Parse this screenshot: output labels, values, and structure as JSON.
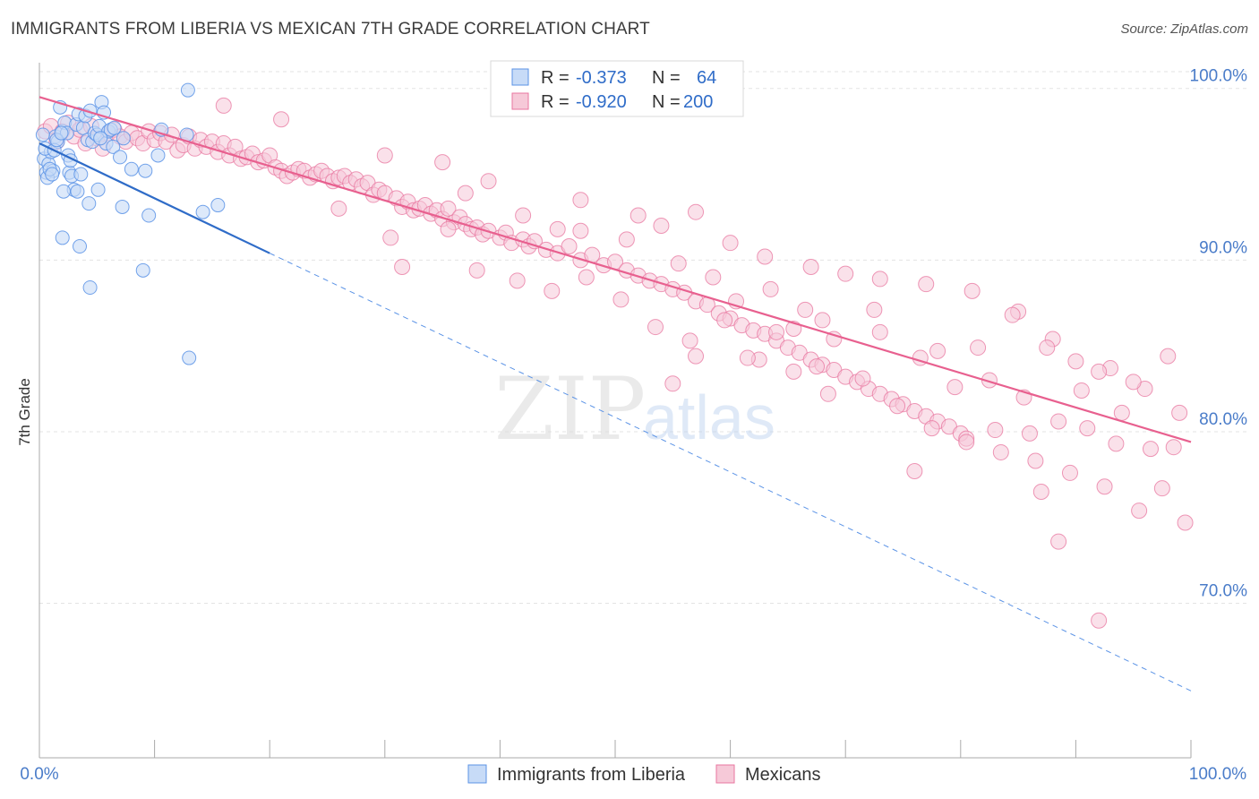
{
  "header": {
    "title": "IMMIGRANTS FROM LIBERIA VS MEXICAN 7TH GRADE CORRELATION CHART",
    "source": "Source: ZipAtlas.com"
  },
  "watermark": {
    "zip": "ZIP",
    "atlas": "atlas"
  },
  "legend_top": {
    "r_label": "R =",
    "n_label": "N =",
    "rows": [
      {
        "r": "-0.373",
        "n": "64"
      },
      {
        "r": "-0.920",
        "n": "200"
      }
    ]
  },
  "legend_bottom": {
    "items": [
      "Immigrants from Liberia",
      "Mexicans"
    ]
  },
  "chart_data": {
    "type": "scatter",
    "xlabel": "",
    "ylabel": "7th Grade",
    "x_tick_labels": [
      "0.0%",
      "100.0%"
    ],
    "y_tick_labels": [
      "100.0%",
      "90.0%",
      "80.0%",
      "70.0%"
    ],
    "xlim": [
      0,
      100
    ],
    "ylim": [
      61,
      101.5
    ],
    "grid": true,
    "colors": {
      "liberia": "#5b93e6",
      "liberia_fill": "#c7dbf7",
      "liberia_line": "#2f6cc8",
      "mexicans": "#e8769f",
      "mexicans_fill": "#f6c9d8",
      "mexicans_line": "#e8608f",
      "tick_text": "#4a7cc9"
    },
    "series": [
      {
        "name": "Immigrants from Liberia",
        "r": -0.373,
        "n": 64,
        "trend": {
          "x": [
            0,
            20
          ],
          "y": [
            96.8,
            90.4
          ]
        },
        "trend_dashed": {
          "x": [
            20,
            100
          ],
          "y": [
            90.4,
            64.9
          ]
        },
        "points": [
          [
            0.4,
            95.9
          ],
          [
            0.6,
            95.1
          ],
          [
            0.8,
            95.6
          ],
          [
            1.0,
            96.3
          ],
          [
            1.2,
            95.2
          ],
          [
            1.4,
            97.2
          ],
          [
            1.6,
            96.9
          ],
          [
            1.8,
            98.9
          ],
          [
            2.0,
            97.5
          ],
          [
            2.2,
            98.0
          ],
          [
            2.4,
            97.4
          ],
          [
            2.5,
            96.1
          ],
          [
            2.6,
            95.1
          ],
          [
            2.7,
            95.8
          ],
          [
            2.8,
            94.9
          ],
          [
            3.0,
            94.1
          ],
          [
            3.2,
            97.9
          ],
          [
            3.4,
            98.5
          ],
          [
            3.6,
            95.0
          ],
          [
            3.8,
            97.7
          ],
          [
            4.0,
            98.4
          ],
          [
            4.2,
            97.0
          ],
          [
            4.4,
            98.7
          ],
          [
            4.6,
            96.9
          ],
          [
            4.8,
            97.4
          ],
          [
            5.0,
            97.3
          ],
          [
            5.2,
            97.8
          ],
          [
            5.4,
            99.2
          ],
          [
            5.6,
            98.6
          ],
          [
            5.8,
            96.8
          ],
          [
            6.0,
            97.5
          ],
          [
            6.2,
            97.6
          ],
          [
            6.4,
            96.6
          ],
          [
            0.3,
            97.3
          ],
          [
            0.5,
            96.5
          ],
          [
            0.7,
            94.8
          ],
          [
            0.9,
            95.3
          ],
          [
            1.1,
            95.0
          ],
          [
            1.3,
            96.4
          ],
          [
            1.5,
            97.0
          ],
          [
            1.9,
            97.4
          ],
          [
            2.1,
            94.0
          ],
          [
            3.3,
            94.0
          ],
          [
            3.5,
            90.8
          ],
          [
            4.3,
            93.3
          ],
          [
            5.1,
            94.1
          ],
          [
            5.3,
            97.1
          ],
          [
            6.5,
            97.7
          ],
          [
            7.0,
            96.0
          ],
          [
            7.2,
            93.1
          ],
          [
            8.0,
            95.3
          ],
          [
            9.2,
            95.2
          ],
          [
            9.5,
            92.6
          ],
          [
            10.3,
            96.1
          ],
          [
            10.6,
            97.6
          ],
          [
            12.8,
            97.3
          ],
          [
            14.2,
            92.8
          ],
          [
            15.5,
            93.2
          ],
          [
            2.0,
            91.3
          ],
          [
            4.4,
            88.4
          ],
          [
            7.3,
            97.1
          ],
          [
            9.0,
            89.4
          ],
          [
            12.9,
            99.9
          ],
          [
            13.0,
            84.3
          ]
        ]
      },
      {
        "name": "Mexicans",
        "r": -0.92,
        "n": 200,
        "trend": {
          "x": [
            0,
            100
          ],
          "y": [
            99.5,
            79.4
          ]
        },
        "points": [
          [
            0.5,
            97.5
          ],
          [
            1.0,
            97.8
          ],
          [
            1.5,
            96.9
          ],
          [
            2.0,
            97.5
          ],
          [
            2.5,
            98.0
          ],
          [
            3.0,
            97.2
          ],
          [
            3.5,
            97.6
          ],
          [
            4.0,
            96.8
          ],
          [
            4.5,
            97.8
          ],
          [
            5.0,
            97.1
          ],
          [
            5.5,
            96.5
          ],
          [
            6.0,
            97.4
          ],
          [
            6.5,
            97.6
          ],
          [
            7.0,
            97.2
          ],
          [
            7.5,
            96.9
          ],
          [
            8.0,
            97.4
          ],
          [
            8.5,
            97.1
          ],
          [
            9.0,
            96.8
          ],
          [
            9.5,
            97.5
          ],
          [
            10.0,
            97.0
          ],
          [
            10.5,
            97.4
          ],
          [
            11.0,
            96.9
          ],
          [
            11.5,
            97.3
          ],
          [
            12.0,
            96.4
          ],
          [
            12.5,
            96.7
          ],
          [
            13.0,
            97.2
          ],
          [
            13.5,
            96.5
          ],
          [
            14.0,
            97.0
          ],
          [
            14.5,
            96.6
          ],
          [
            15.0,
            96.9
          ],
          [
            15.5,
            96.3
          ],
          [
            16.0,
            96.8
          ],
          [
            16.5,
            96.1
          ],
          [
            17.0,
            96.6
          ],
          [
            17.5,
            95.9
          ],
          [
            18.0,
            96.0
          ],
          [
            18.5,
            96.2
          ],
          [
            19.0,
            95.7
          ],
          [
            19.5,
            95.8
          ],
          [
            20.0,
            96.1
          ],
          [
            20.5,
            95.4
          ],
          [
            21.0,
            95.2
          ],
          [
            21.5,
            94.9
          ],
          [
            22.0,
            95.1
          ],
          [
            22.5,
            95.3
          ],
          [
            23.0,
            95.2
          ],
          [
            23.5,
            94.8
          ],
          [
            24.0,
            95.0
          ],
          [
            24.5,
            95.2
          ],
          [
            25.0,
            94.9
          ],
          [
            25.5,
            94.6
          ],
          [
            26.0,
            94.8
          ],
          [
            26.5,
            94.9
          ],
          [
            27.0,
            94.5
          ],
          [
            27.5,
            94.7
          ],
          [
            28.0,
            94.3
          ],
          [
            28.5,
            94.5
          ],
          [
            29.0,
            93.8
          ],
          [
            29.5,
            94.1
          ],
          [
            30.0,
            93.9
          ],
          [
            31.0,
            93.6
          ],
          [
            31.5,
            93.1
          ],
          [
            32.0,
            93.4
          ],
          [
            32.5,
            92.9
          ],
          [
            33.0,
            93.0
          ],
          [
            33.5,
            93.2
          ],
          [
            34.0,
            92.7
          ],
          [
            34.5,
            92.9
          ],
          [
            35.0,
            92.4
          ],
          [
            35.5,
            93.0
          ],
          [
            36.0,
            92.2
          ],
          [
            36.5,
            92.5
          ],
          [
            37.0,
            92.1
          ],
          [
            37.5,
            91.8
          ],
          [
            38.0,
            91.9
          ],
          [
            38.5,
            91.5
          ],
          [
            39.0,
            91.7
          ],
          [
            40.0,
            91.3
          ],
          [
            40.5,
            91.6
          ],
          [
            41.0,
            91.0
          ],
          [
            42.0,
            91.2
          ],
          [
            42.5,
            90.8
          ],
          [
            43.0,
            91.1
          ],
          [
            44.0,
            90.6
          ],
          [
            45.0,
            90.4
          ],
          [
            46.0,
            90.8
          ],
          [
            47.0,
            90.0
          ],
          [
            48.0,
            90.3
          ],
          [
            49.0,
            89.7
          ],
          [
            50.0,
            89.9
          ],
          [
            51.0,
            89.4
          ],
          [
            52.0,
            89.1
          ],
          [
            53.0,
            88.8
          ],
          [
            54.0,
            88.6
          ],
          [
            55.0,
            88.3
          ],
          [
            56.0,
            88.1
          ],
          [
            57.0,
            87.6
          ],
          [
            58.0,
            87.4
          ],
          [
            59.0,
            86.9
          ],
          [
            60.0,
            86.6
          ],
          [
            61.0,
            86.2
          ],
          [
            62.0,
            85.9
          ],
          [
            63.0,
            85.7
          ],
          [
            64.0,
            85.3
          ],
          [
            65.0,
            84.9
          ],
          [
            66.0,
            84.6
          ],
          [
            67.0,
            84.2
          ],
          [
            68.0,
            83.9
          ],
          [
            69.0,
            83.6
          ],
          [
            70.0,
            83.2
          ],
          [
            71.0,
            82.9
          ],
          [
            72.0,
            82.5
          ],
          [
            73.0,
            82.2
          ],
          [
            74.0,
            81.9
          ],
          [
            75.0,
            81.6
          ],
          [
            76.0,
            81.2
          ],
          [
            77.0,
            80.9
          ],
          [
            78.0,
            80.6
          ],
          [
            79.0,
            80.3
          ],
          [
            80.0,
            79.9
          ],
          [
            16.0,
            99.0
          ],
          [
            21.0,
            98.2
          ],
          [
            30.0,
            96.1
          ],
          [
            35.0,
            95.7
          ],
          [
            39.0,
            94.6
          ],
          [
            47.0,
            93.5
          ],
          [
            52.0,
            92.6
          ],
          [
            57.0,
            92.8
          ],
          [
            60.0,
            91.0
          ],
          [
            63.0,
            90.2
          ],
          [
            67.0,
            89.6
          ],
          [
            70.0,
            89.2
          ],
          [
            73.0,
            88.9
          ],
          [
            77.0,
            88.6
          ],
          [
            81.0,
            88.2
          ],
          [
            85.0,
            87.0
          ],
          [
            88.0,
            85.4
          ],
          [
            90.0,
            84.1
          ],
          [
            93.0,
            83.7
          ],
          [
            96.0,
            82.5
          ],
          [
            99.0,
            81.1
          ],
          [
            98.0,
            84.4
          ],
          [
            26.0,
            93.0
          ],
          [
            30.5,
            91.3
          ],
          [
            31.5,
            89.6
          ],
          [
            35.5,
            91.8
          ],
          [
            38.0,
            89.4
          ],
          [
            41.5,
            88.8
          ],
          [
            44.5,
            88.2
          ],
          [
            47.5,
            89.0
          ],
          [
            50.5,
            87.7
          ],
          [
            53.5,
            86.1
          ],
          [
            56.5,
            85.3
          ],
          [
            59.5,
            86.5
          ],
          [
            62.5,
            84.2
          ],
          [
            65.5,
            83.5
          ],
          [
            68.5,
            82.2
          ],
          [
            71.5,
            83.1
          ],
          [
            74.5,
            81.5
          ],
          [
            77.5,
            80.2
          ],
          [
            80.5,
            79.6
          ],
          [
            83.5,
            78.8
          ],
          [
            86.5,
            78.3
          ],
          [
            89.5,
            77.6
          ],
          [
            92.5,
            76.8
          ],
          [
            95.5,
            75.4
          ],
          [
            97.5,
            76.7
          ],
          [
            99.5,
            74.7
          ],
          [
            45.0,
            91.8
          ],
          [
            51.0,
            91.2
          ],
          [
            54.0,
            92.0
          ],
          [
            58.5,
            89.0
          ],
          [
            63.5,
            88.3
          ],
          [
            68.0,
            86.5
          ],
          [
            72.5,
            87.1
          ],
          [
            76.5,
            84.3
          ],
          [
            79.5,
            82.6
          ],
          [
            82.5,
            83.0
          ],
          [
            85.5,
            82.0
          ],
          [
            88.5,
            80.6
          ],
          [
            91.0,
            80.2
          ],
          [
            94.0,
            81.1
          ],
          [
            96.5,
            79.0
          ],
          [
            98.5,
            79.1
          ],
          [
            37.0,
            93.9
          ],
          [
            42.0,
            92.6
          ],
          [
            47.0,
            91.7
          ],
          [
            55.5,
            89.8
          ],
          [
            60.5,
            87.6
          ],
          [
            65.5,
            86.0
          ],
          [
            69.0,
            85.4
          ],
          [
            73.0,
            85.8
          ],
          [
            78.0,
            84.7
          ],
          [
            81.5,
            84.9
          ],
          [
            84.5,
            86.8
          ],
          [
            87.5,
            84.9
          ],
          [
            90.5,
            82.4
          ],
          [
            93.5,
            79.3
          ],
          [
            95.0,
            82.9
          ],
          [
            92.0,
            83.5
          ],
          [
            86.0,
            79.9
          ],
          [
            83.0,
            80.1
          ],
          [
            87.0,
            76.5
          ],
          [
            88.5,
            73.6
          ],
          [
            92.0,
            69.0
          ],
          [
            76.0,
            77.7
          ],
          [
            80.5,
            79.4
          ],
          [
            67.5,
            83.8
          ],
          [
            64.0,
            85.8
          ],
          [
            61.5,
            84.3
          ],
          [
            57.0,
            84.4
          ],
          [
            55.0,
            82.8
          ],
          [
            66.5,
            87.1
          ]
        ]
      }
    ]
  }
}
